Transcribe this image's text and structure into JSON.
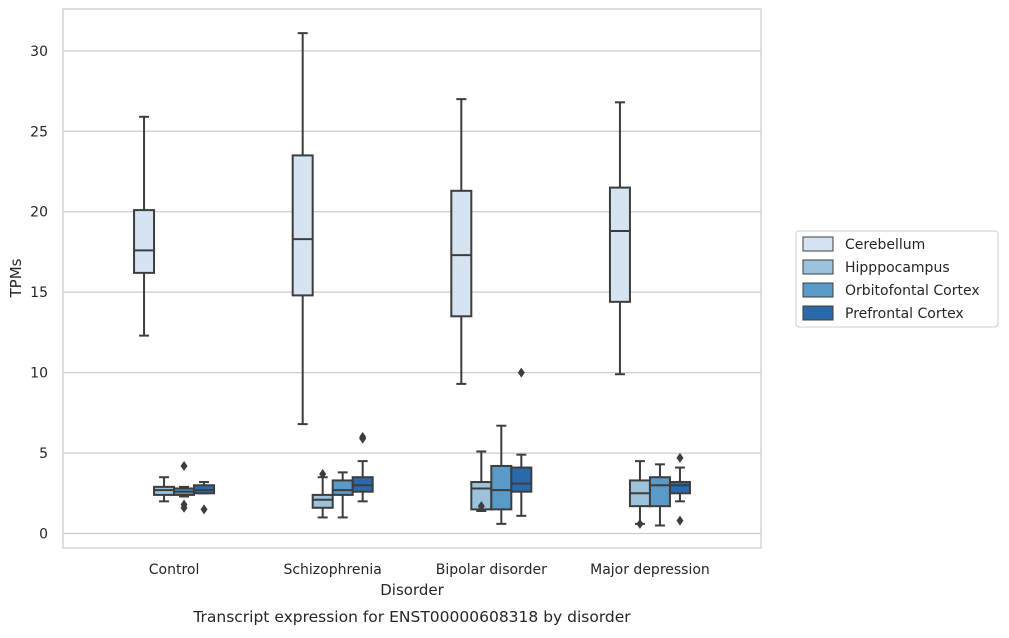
{
  "chart_data": {
    "type": "box",
    "title": "",
    "caption": "Transcript expression for ENST00000608318 by disorder",
    "xlabel": "Disorder",
    "ylabel": "TPMs",
    "ylim": [
      -0.9,
      32.6
    ],
    "yticks": [
      0,
      5,
      10,
      15,
      20,
      25,
      30
    ],
    "grid": "horizontal",
    "legend_placement": "right",
    "categories": [
      "Control",
      "Schizophrenia",
      "Bipolar disorder",
      "Major depression"
    ],
    "series": [
      {
        "name": "Cerebellum",
        "color": "#d6e4f1",
        "boxes": [
          {
            "whislo": 12.3,
            "q1": 16.2,
            "med": 17.6,
            "q3": 20.1,
            "whishi": 25.9,
            "fliers": []
          },
          {
            "whislo": 6.8,
            "q1": 14.8,
            "med": 18.3,
            "q3": 23.5,
            "whishi": 31.1,
            "fliers": []
          },
          {
            "whislo": 9.3,
            "q1": 13.5,
            "med": 17.3,
            "q3": 21.3,
            "whishi": 27.0,
            "fliers": []
          },
          {
            "whislo": 9.9,
            "q1": 14.4,
            "med": 18.8,
            "q3": 21.5,
            "whishi": 26.8,
            "fliers": []
          }
        ]
      },
      {
        "name": "Hipppocampus",
        "color": "#9cc2dc",
        "boxes": [
          {
            "whislo": 2.0,
            "q1": 2.4,
            "med": 2.7,
            "q3": 2.9,
            "whishi": 3.5,
            "fliers": []
          },
          {
            "whislo": 1.0,
            "q1": 1.6,
            "med": 2.1,
            "q3": 2.4,
            "whishi": 3.5,
            "fliers": [
              3.7
            ]
          },
          {
            "whislo": 1.4,
            "q1": 1.5,
            "med": 2.8,
            "q3": 3.2,
            "whishi": 5.1,
            "fliers": [
              1.7
            ]
          },
          {
            "whislo": 0.6,
            "q1": 1.7,
            "med": 2.5,
            "q3": 3.3,
            "whishi": 4.5,
            "fliers": [
              0.6
            ]
          }
        ]
      },
      {
        "name": "Orbitofontal Cortex",
        "color": "#5a9ac8",
        "boxes": [
          {
            "whislo": 2.3,
            "q1": 2.4,
            "med": 2.6,
            "q3": 2.8,
            "whishi": 2.9,
            "fliers": [
              4.2,
              1.8,
              1.6
            ]
          },
          {
            "whislo": 1.0,
            "q1": 2.4,
            "med": 2.7,
            "q3": 3.3,
            "whishi": 3.8,
            "fliers": []
          },
          {
            "whislo": 0.6,
            "q1": 1.5,
            "med": 2.7,
            "q3": 4.2,
            "whishi": 6.7,
            "fliers": []
          },
          {
            "whislo": 0.5,
            "q1": 1.7,
            "med": 3.0,
            "q3": 3.5,
            "whishi": 4.3,
            "fliers": []
          }
        ]
      },
      {
        "name": "Prefrontal Cortex",
        "color": "#2a6aab",
        "boxes": [
          {
            "whislo": 2.5,
            "q1": 2.5,
            "med": 2.7,
            "q3": 3.0,
            "whishi": 3.2,
            "fliers": [
              1.5
            ]
          },
          {
            "whislo": 2.0,
            "q1": 2.6,
            "med": 3.0,
            "q3": 3.5,
            "whishi": 4.5,
            "fliers": [
              6.0,
              5.9
            ]
          },
          {
            "whislo": 1.1,
            "q1": 2.6,
            "med": 3.1,
            "q3": 4.1,
            "whishi": 4.9,
            "fliers": [
              10.0
            ]
          },
          {
            "whislo": 2.0,
            "q1": 2.5,
            "med": 3.0,
            "q3": 3.2,
            "whishi": 4.1,
            "fliers": [
              4.7,
              0.8
            ]
          }
        ]
      }
    ]
  }
}
